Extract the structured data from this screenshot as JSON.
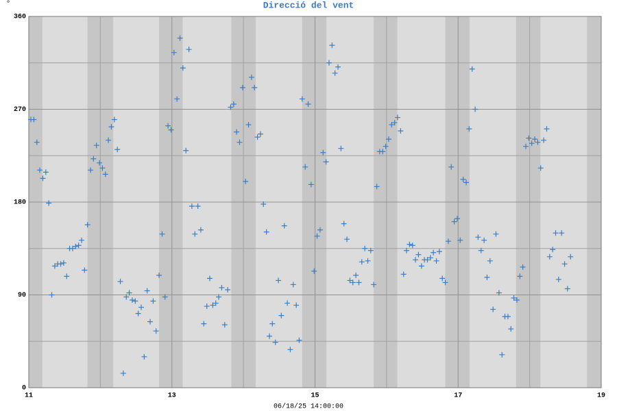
{
  "chart_data": {
    "type": "scatter",
    "title": "Direcció del vent",
    "ylabel": "°",
    "xlabel": "06/18/25 14:00:00",
    "color": "#3a7cc0",
    "grid": true,
    "xlim": [
      11,
      19
    ],
    "xticks": [
      11,
      13,
      15,
      17,
      19
    ],
    "xminor": [
      12,
      14,
      16,
      18
    ],
    "ylim": [
      0,
      360
    ],
    "yticks": [
      0,
      90,
      180,
      270,
      360
    ],
    "yminor": [
      45,
      135,
      225,
      315
    ],
    "bands": [
      [
        11,
        11.19
      ],
      [
        11.82,
        12.18
      ],
      [
        12.82,
        13.15
      ],
      [
        13.83,
        14.17
      ],
      [
        14.82,
        15.16
      ],
      [
        15.82,
        16.15
      ],
      [
        16.82,
        17.16
      ],
      [
        17.81,
        18.15
      ],
      [
        18.8,
        19
      ]
    ],
    "x": [
      11.029,
      11.071,
      11.113,
      11.154,
      11.196,
      11.238,
      11.279,
      11.321,
      11.363,
      11.404,
      11.446,
      11.488,
      11.529,
      11.571,
      11.613,
      11.654,
      11.696,
      11.738,
      11.779,
      11.821,
      11.863,
      11.904,
      11.946,
      11.988,
      12.029,
      12.071,
      12.113,
      12.154,
      12.196,
      12.238,
      12.279,
      12.321,
      12.363,
      12.404,
      12.446,
      12.488,
      12.529,
      12.571,
      12.613,
      12.654,
      12.696,
      12.738,
      12.779,
      12.821,
      12.863,
      12.904,
      12.946,
      12.988,
      13.029,
      13.071,
      13.113,
      13.154,
      13.196,
      13.238,
      13.279,
      13.321,
      13.363,
      13.404,
      13.446,
      13.488,
      13.529,
      13.571,
      13.613,
      13.654,
      13.696,
      13.738,
      13.779,
      13.821,
      13.863,
      13.904,
      13.946,
      13.988,
      14.029,
      14.071,
      14.113,
      14.154,
      14.196,
      14.238,
      14.279,
      14.321,
      14.363,
      14.404,
      14.446,
      14.488,
      14.529,
      14.571,
      14.613,
      14.654,
      14.696,
      14.738,
      14.779,
      14.821,
      14.863,
      14.904,
      14.946,
      14.988,
      15.029,
      15.071,
      15.113,
      15.154,
      15.196,
      15.238,
      15.279,
      15.321,
      15.363,
      15.404,
      15.446,
      15.488,
      15.529,
      15.571,
      15.613,
      15.654,
      15.696,
      15.738,
      15.779,
      15.821,
      15.863,
      15.904,
      15.946,
      15.988,
      16.029,
      16.071,
      16.113,
      16.154,
      16.196,
      16.238,
      16.279,
      16.321,
      16.363,
      16.404,
      16.446,
      16.488,
      16.529,
      16.571,
      16.613,
      16.654,
      16.696,
      16.738,
      16.779,
      16.821,
      16.863,
      16.904,
      16.946,
      16.988,
      17.029,
      17.071,
      17.113,
      17.154,
      17.196,
      17.238,
      17.279,
      17.321,
      17.363,
      17.404,
      17.446,
      17.488,
      17.529,
      17.571,
      17.613,
      17.654,
      17.696,
      17.738,
      17.779,
      17.821,
      17.863,
      17.904,
      17.946,
      17.988,
      18.029,
      18.071,
      18.113,
      18.154,
      18.196,
      18.238,
      18.279,
      18.321,
      18.363,
      18.404,
      18.446,
      18.488,
      18.529,
      18.571
    ],
    "values": [
      260,
      260,
      238,
      211,
      203,
      209,
      179,
      90,
      118,
      120,
      120,
      121,
      108,
      135,
      135,
      137,
      138,
      143,
      114,
      158,
      211,
      222,
      235,
      218,
      213,
      207,
      240,
      253,
      260,
      231,
      103,
      14,
      88,
      92,
      85,
      84,
      72,
      78,
      30,
      94,
      64,
      84,
      55,
      109,
      149,
      88,
      254,
      250,
      325,
      280,
      339,
      310,
      230,
      328,
      176,
      149,
      176,
      153,
      62,
      79,
      106,
      80,
      82,
      88,
      97,
      61,
      95,
      272,
      275,
      248,
      238,
      291,
      200,
      255,
      301,
      291,
      243,
      246,
      178,
      151,
      50,
      62,
      44,
      104,
      70,
      157,
      82,
      37,
      100,
      80,
      46,
      280,
      214,
      275,
      197,
      113,
      147,
      153,
      228,
      219,
      315,
      332,
      305,
      311,
      232,
      159,
      144,
      104,
      102,
      109,
      102,
      122,
      135,
      123,
      133,
      100,
      195,
      229,
      229,
      234,
      241,
      255,
      257,
      262,
      249,
      110,
      133,
      139,
      138,
      124,
      129,
      118,
      124,
      124,
      126,
      131,
      123,
      132,
      106,
      102,
      142,
      214,
      161,
      164,
      143,
      202,
      199,
      251,
      309,
      270,
      146,
      133,
      143,
      107,
      123,
      76,
      149,
      92,
      32,
      69,
      69,
      57,
      87,
      85,
      108,
      117,
      234,
      242,
      237,
      241,
      238,
      213,
      240,
      251,
      127,
      134,
      150,
      105,
      150,
      120,
      96,
      127
    ]
  }
}
